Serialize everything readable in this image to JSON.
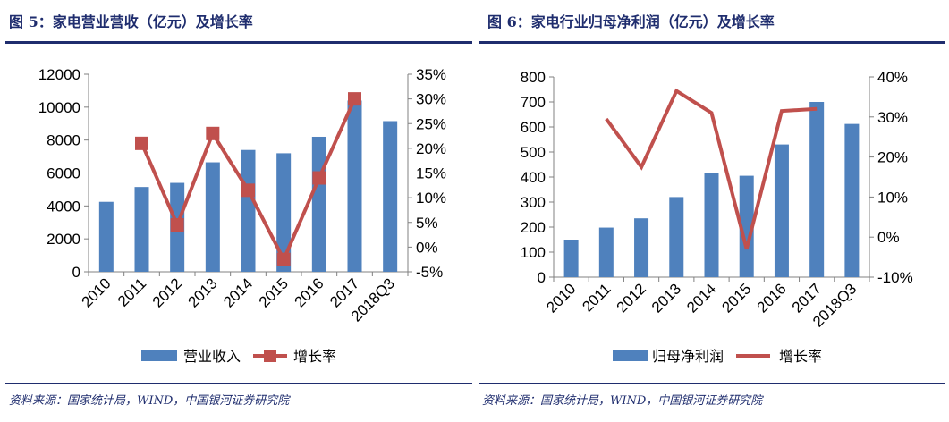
{
  "charts": [
    {
      "fig_title": "图 5：家电营业营收（亿元）及增长率",
      "source": "资料来源：国家统计局，WIND，中国银河证券研究院",
      "legend": {
        "bar": "营业收入",
        "line": "增长率"
      },
      "left_ticks": [
        "12000",
        "10000",
        "8000",
        "6000",
        "4000",
        "2000",
        "0"
      ],
      "right_ticks": [
        "35%",
        "30%",
        "25%",
        "20%",
        "15%",
        "10%",
        "5%",
        "0%",
        "-5%"
      ],
      "x_ticks": [
        "2010",
        "2011",
        "2012",
        "2013",
        "2014",
        "2015",
        "2016",
        "2017",
        "2018Q3"
      ]
    },
    {
      "fig_title": "图 6：家电行业归母净利润（亿元）及增长率",
      "source": "资料来源：国家统计局，WIND，中国银河证券研究院",
      "legend": {
        "bar": "归母净利润",
        "line": "增长率"
      },
      "left_ticks": [
        "800",
        "700",
        "600",
        "500",
        "400",
        "300",
        "200",
        "100",
        "0"
      ],
      "right_ticks": [
        "40%",
        "30%",
        "20%",
        "10%",
        "0%",
        "-10%"
      ],
      "x_ticks": [
        "2010",
        "2011",
        "2012",
        "2013",
        "2014",
        "2015",
        "2016",
        "2017",
        "2018Q3"
      ]
    }
  ],
  "colors": {
    "bar": "#4f81bd",
    "line": "#c0504d",
    "title": "#1f2d6e"
  },
  "chart_data": [
    {
      "type": "bar",
      "categories": [
        "2010",
        "2011",
        "2012",
        "2013",
        "2014",
        "2015",
        "2016",
        "2017",
        "2018Q3"
      ],
      "series": [
        {
          "name": "营业收入",
          "type": "bar",
          "axis": "left",
          "values": [
            4250,
            5150,
            5400,
            6650,
            7400,
            7200,
            8200,
            10400,
            9150
          ]
        },
        {
          "name": "增长率",
          "type": "line",
          "axis": "right",
          "marker": "square",
          "values": [
            null,
            21,
            4.5,
            23,
            11.5,
            -2.5,
            14,
            30,
            null
          ]
        }
      ],
      "ylim_left": [
        0,
        12000
      ],
      "ylim_right": [
        -5,
        35
      ],
      "legend_position": "bottom",
      "grid": false
    },
    {
      "type": "bar",
      "categories": [
        "2010",
        "2011",
        "2012",
        "2013",
        "2014",
        "2015",
        "2016",
        "2017",
        "2018Q3"
      ],
      "series": [
        {
          "name": "归母净利润",
          "type": "bar",
          "axis": "left",
          "values": [
            150,
            198,
            235,
            320,
            415,
            405,
            530,
            700,
            612
          ]
        },
        {
          "name": "增长率",
          "type": "line",
          "axis": "right",
          "marker": "none",
          "values": [
            null,
            29.5,
            17.5,
            36.5,
            31,
            -3,
            31.5,
            32,
            null
          ]
        }
      ],
      "ylim_left": [
        0,
        800
      ],
      "ylim_right": [
        -10,
        40
      ],
      "legend_position": "bottom",
      "grid": false
    }
  ]
}
